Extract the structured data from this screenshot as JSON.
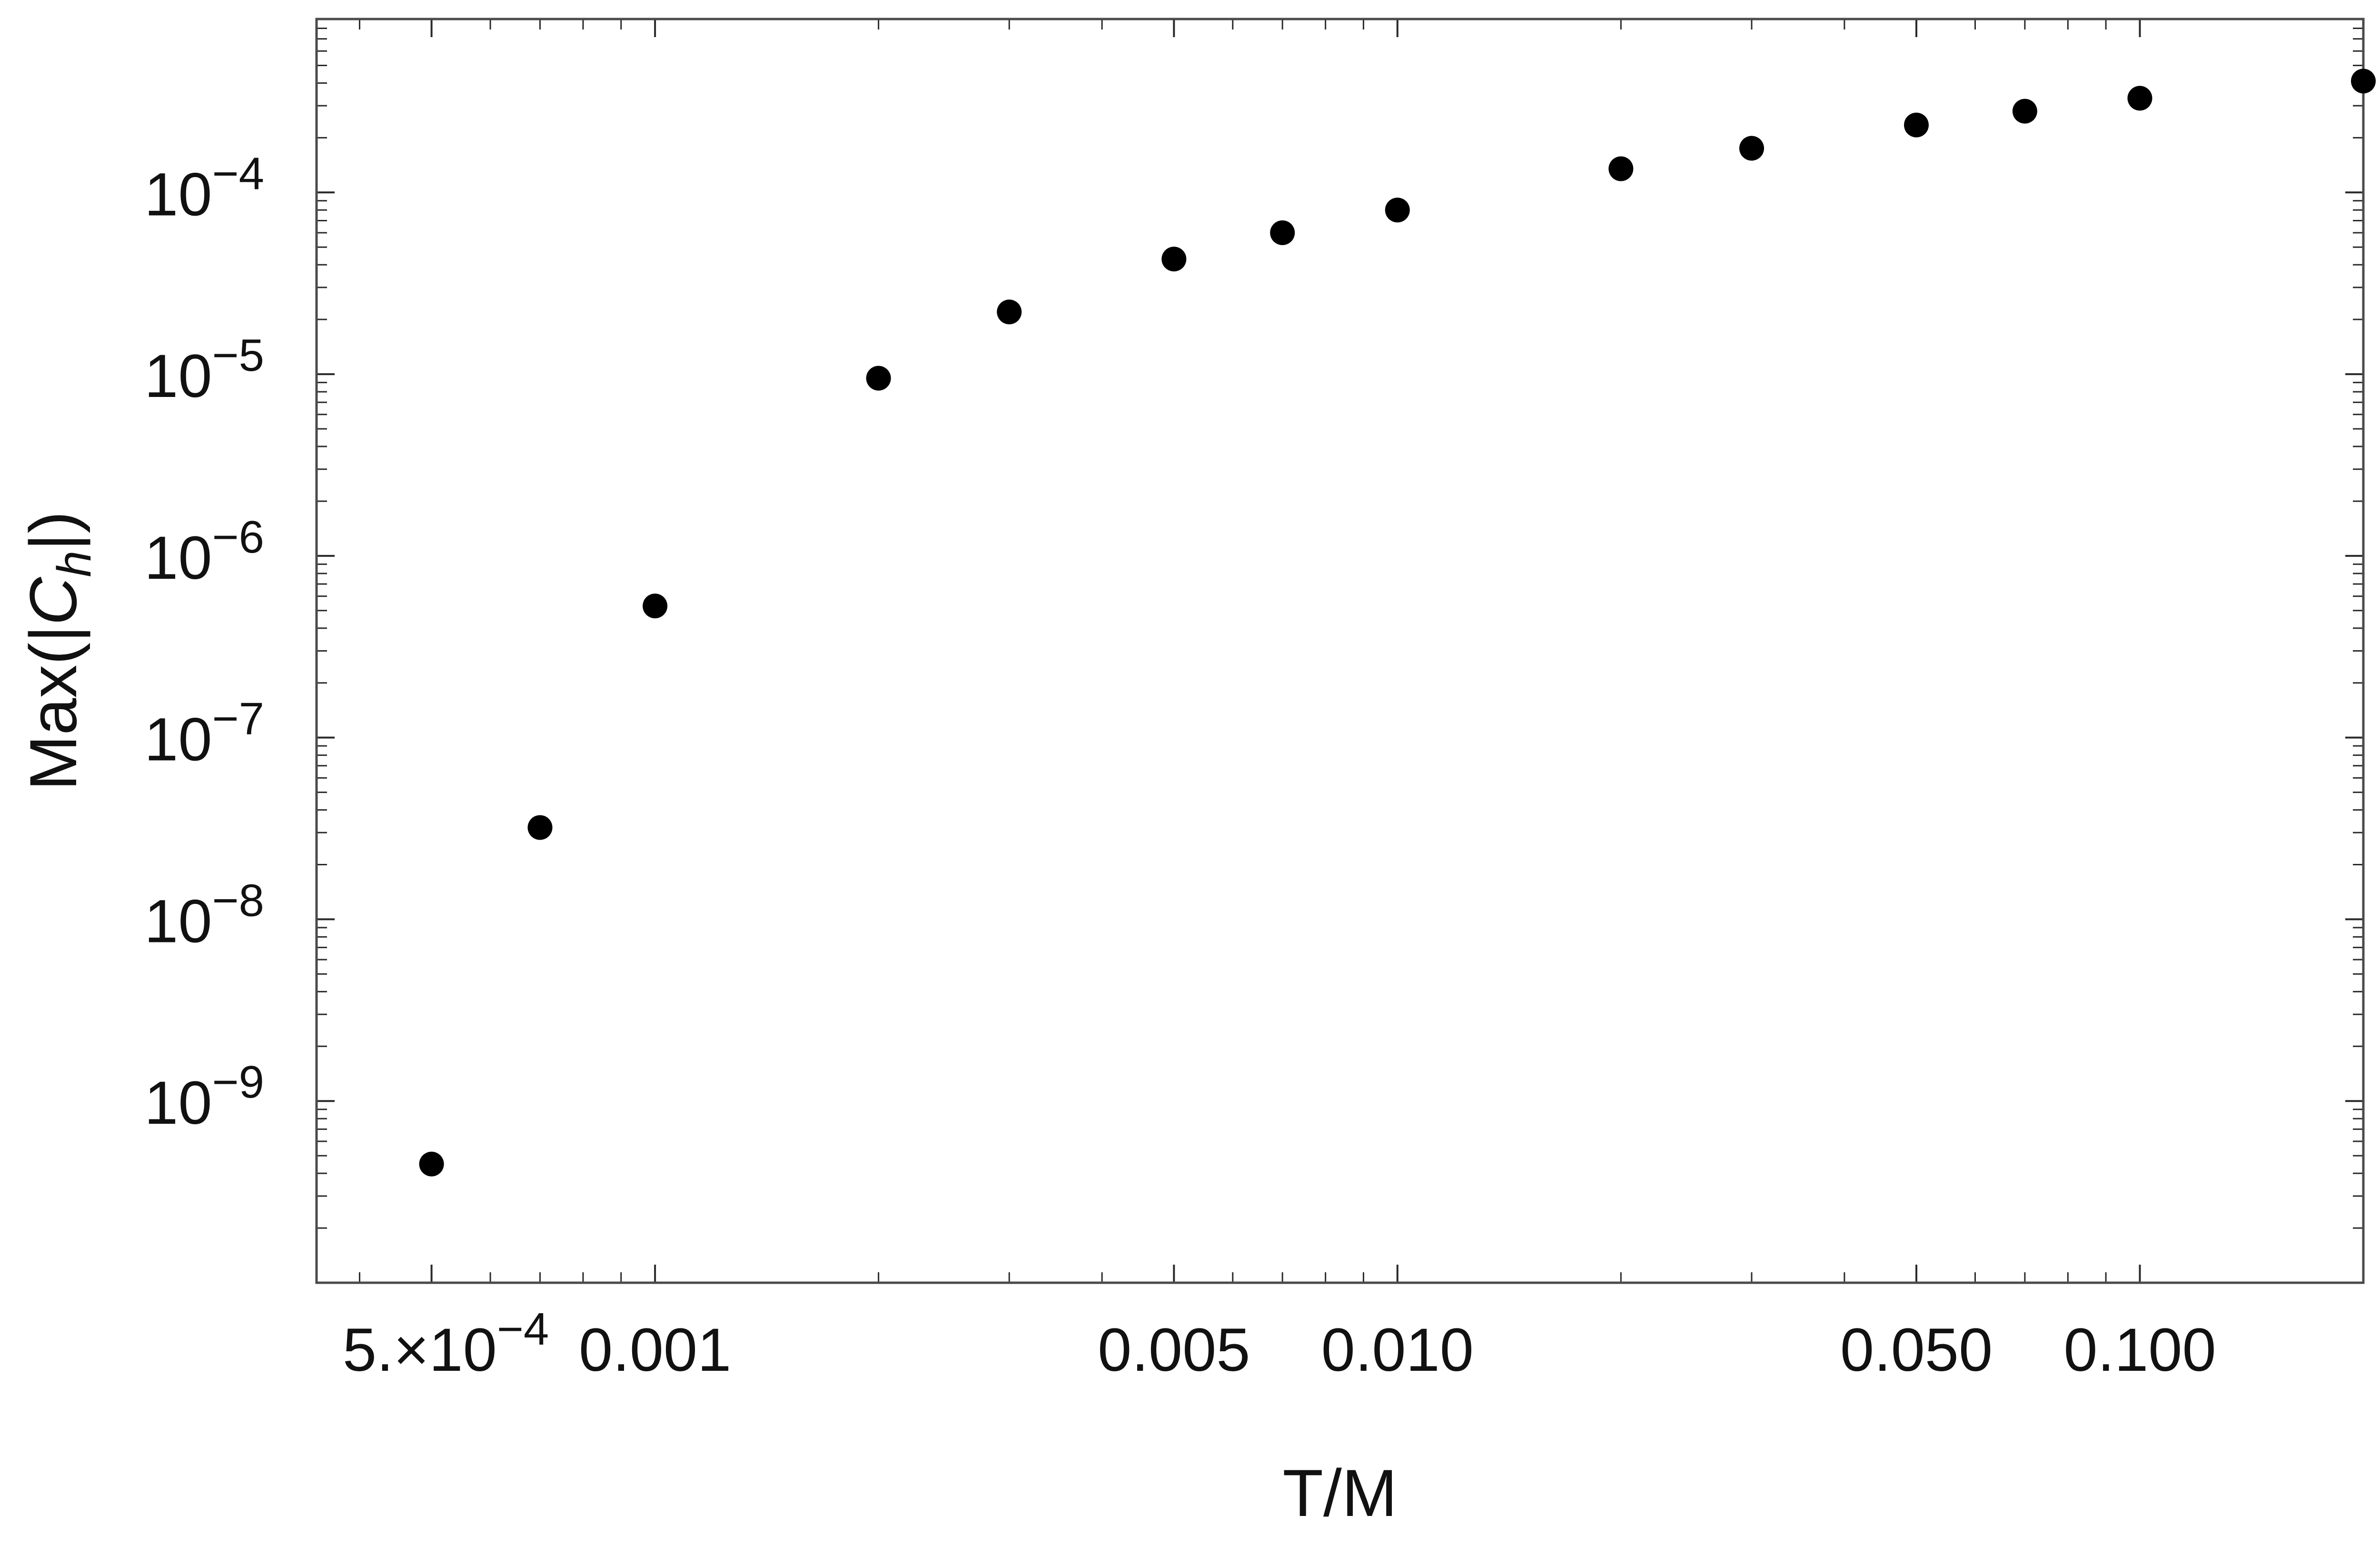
{
  "chart_data": {
    "type": "scatter",
    "title": "",
    "xlabel": "T/M",
    "ylabel": "Max(|C_h|)",
    "ylabel_parts": {
      "prefix": "Max(|",
      "symbol": "C",
      "subscript": "h",
      "suffix": "|)"
    },
    "x_scale": "log",
    "y_scale": "log",
    "xlim": [
      0.00035,
      0.2
    ],
    "ylim": [
      1e-10,
      0.0009
    ],
    "x_ticks": [
      {
        "value": 0.0005,
        "mantissa": "5.×10",
        "exponent": "−4"
      },
      {
        "value": 0.001,
        "label": "0.001"
      },
      {
        "value": 0.005,
        "label": "0.005"
      },
      {
        "value": 0.01,
        "label": "0.010"
      },
      {
        "value": 0.05,
        "label": "0.050"
      },
      {
        "value": 0.1,
        "label": "0.100"
      }
    ],
    "y_ticks": [
      {
        "value": 1e-09,
        "base": "10",
        "exponent": "−9"
      },
      {
        "value": 1e-08,
        "base": "10",
        "exponent": "−8"
      },
      {
        "value": 1e-07,
        "base": "10",
        "exponent": "−7"
      },
      {
        "value": 1e-06,
        "base": "10",
        "exponent": "−6"
      },
      {
        "value": 1e-05,
        "base": "10",
        "exponent": "−5"
      },
      {
        "value": 0.0001,
        "base": "10",
        "exponent": "−4"
      }
    ],
    "grid": false,
    "marker_color": "#000000",
    "points": [
      {
        "x": 0.0005,
        "y": 4.5e-10
      },
      {
        "x": 0.0007,
        "y": 3.2e-08
      },
      {
        "x": 0.001,
        "y": 5.3e-07
      },
      {
        "x": 0.002,
        "y": 9.5e-06
      },
      {
        "x": 0.003,
        "y": 2.2e-05
      },
      {
        "x": 0.005,
        "y": 4.3e-05
      },
      {
        "x": 0.007,
        "y": 6e-05
      },
      {
        "x": 0.01,
        "y": 8e-05
      },
      {
        "x": 0.02,
        "y": 0.000135
      },
      {
        "x": 0.03,
        "y": 0.000175
      },
      {
        "x": 0.05,
        "y": 0.000235
      },
      {
        "x": 0.07,
        "y": 0.00028
      },
      {
        "x": 0.1,
        "y": 0.00033
      },
      {
        "x": 0.2,
        "y": 0.00041
      }
    ]
  }
}
